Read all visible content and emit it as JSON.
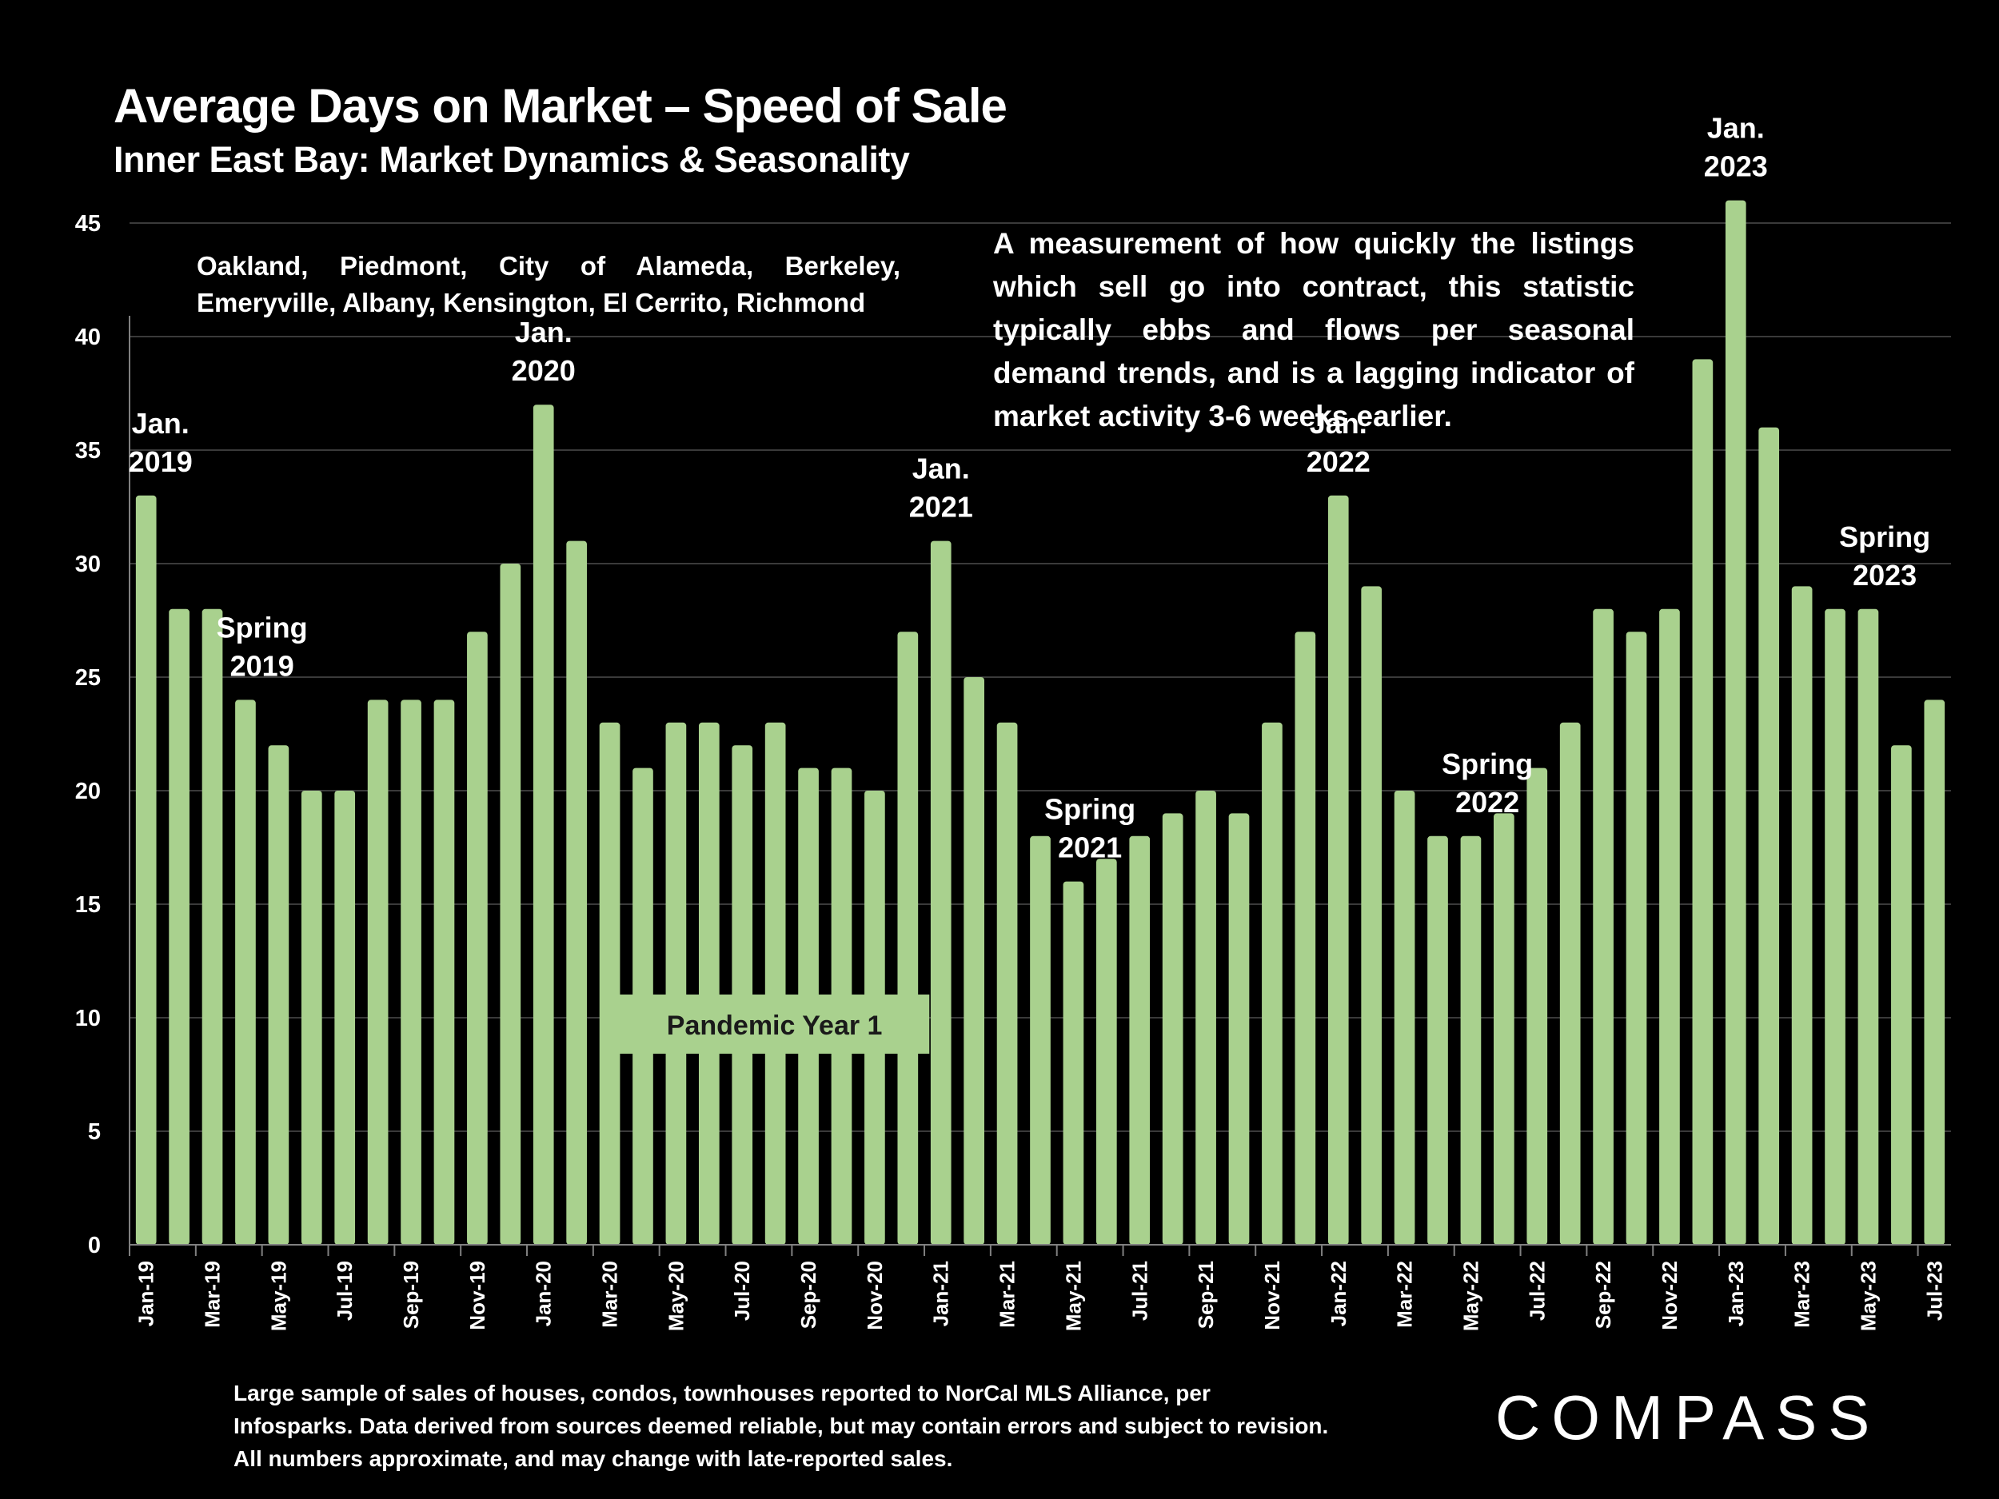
{
  "header": {
    "title": "Average Days on Market – Speed of Sale",
    "subtitle": "Inner East Bay: Market Dynamics & Seasonality"
  },
  "cities_note": "Oakland, Piedmont, City of Alameda, Berkeley, Emeryville, Albany, Kensington, El Cerrito, Richmond",
  "description": "A measurement of how quickly the listings which sell go into contract, this statistic typically ebbs and flows per seasonal demand trends, and is a lagging indicator of market activity 3-6 weeks earlier.",
  "footnote": "Large sample of sales of houses, condos, townhouses reported to NorCal MLS Alliance, per Infosparks. Data derived from sources deemed reliable, but may contain errors and subject to revision. All numbers approximate, and may change with late-reported sales.",
  "logo": {
    "text": "COMPASS"
  },
  "colors": {
    "background": "#000000",
    "bar": "#a9d18e",
    "gridline": "#3a3a3a",
    "text": "#ffffff"
  },
  "chart_data": {
    "type": "bar",
    "title": "Average Days on Market – Speed of Sale",
    "xlabel": "",
    "ylabel": "",
    "ylim": [
      0,
      47
    ],
    "yticks": [
      0,
      5,
      10,
      15,
      20,
      25,
      30,
      35,
      40,
      45
    ],
    "grid": true,
    "legend": "none",
    "categories": [
      "Jan-19",
      "Feb-19",
      "Mar-19",
      "Apr-19",
      "May-19",
      "Jun-19",
      "Jul-19",
      "Aug-19",
      "Sep-19",
      "Oct-19",
      "Nov-19",
      "Dec-19",
      "Jan-20",
      "Feb-20",
      "Mar-20",
      "Apr-20",
      "May-20",
      "Jun-20",
      "Jul-20",
      "Aug-20",
      "Sep-20",
      "Oct-20",
      "Nov-20",
      "Dec-20",
      "Jan-21",
      "Feb-21",
      "Mar-21",
      "Apr-21",
      "May-21",
      "Jun-21",
      "Jul-21",
      "Aug-21",
      "Sep-21",
      "Oct-21",
      "Nov-21",
      "Dec-21",
      "Jan-22",
      "Feb-22",
      "Mar-22",
      "Apr-22",
      "May-22",
      "Jun-22",
      "Jul-22",
      "Aug-22",
      "Sep-22",
      "Oct-22",
      "Nov-22",
      "Dec-22",
      "Jan-23",
      "Feb-23",
      "Mar-23",
      "Apr-23",
      "May-23",
      "Jun-23",
      "Jul-23"
    ],
    "visible_tick_labels": [
      "Jan-19",
      "Mar-19",
      "May-19",
      "Jul-19",
      "Sep-19",
      "Nov-19",
      "Jan-20",
      "Mar-20",
      "May-20",
      "Jul-20",
      "Sep-20",
      "Nov-20",
      "Jan-21",
      "Mar-21",
      "May-21",
      "Jul-21",
      "Sep-21",
      "Nov-21",
      "Jan-22",
      "Mar-22",
      "May-22",
      "Jul-22",
      "Sep-22",
      "Nov-22",
      "Jan-23",
      "Mar-23",
      "May-23",
      "Jul-23"
    ],
    "values": [
      33,
      28,
      28,
      24,
      22,
      20,
      20,
      24,
      24,
      24,
      27,
      30,
      37,
      31,
      23,
      21,
      23,
      23,
      22,
      23,
      21,
      21,
      20,
      27,
      31,
      25,
      23,
      18,
      16,
      17,
      18,
      19,
      20,
      19,
      23,
      27,
      33,
      29,
      20,
      18,
      18,
      19,
      21,
      23,
      28,
      27,
      28,
      39,
      46,
      36,
      29,
      28,
      28,
      22,
      24
    ],
    "annotations": [
      {
        "category": "Jan-19",
        "lines": [
          "Jan.",
          "2019"
        ]
      },
      {
        "category": "Apr-19",
        "lines": [
          "Spring",
          "2019"
        ]
      },
      {
        "category": "Jan-20",
        "lines": [
          "Jan.",
          "2020"
        ]
      },
      {
        "category": "Jan-21",
        "lines": [
          "Jan.",
          "2021"
        ]
      },
      {
        "category": "May-21",
        "lines": [
          "Spring",
          "2021"
        ]
      },
      {
        "category": "Jan-22",
        "lines": [
          "Jan.",
          "2022"
        ]
      },
      {
        "category": "May-22",
        "lines": [
          "Spring",
          "2022"
        ]
      },
      {
        "category": "Jan-23",
        "lines": [
          "Jan.",
          "2023"
        ]
      },
      {
        "category": "May-23",
        "lines": [
          "Spring",
          "2023"
        ]
      }
    ],
    "callout": {
      "text": "Pandemic Year 1",
      "from_category": "Apr-20",
      "to_category": "Dec-20"
    }
  }
}
